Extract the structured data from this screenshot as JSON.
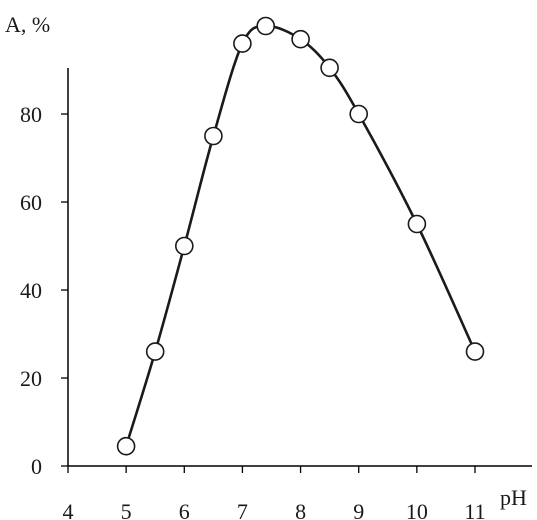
{
  "chart_data": {
    "type": "scatter",
    "xlabel": "pH",
    "ylabel": "A, %",
    "xlim": [
      4,
      11.5
    ],
    "ylim": [
      0,
      100
    ],
    "xticks": [
      4,
      5,
      6,
      7,
      8,
      9,
      10,
      11
    ],
    "yticks": [
      0,
      20,
      40,
      60,
      80
    ],
    "grid": false,
    "series": [
      {
        "marker": "open-circle",
        "line": "smooth",
        "x": [
          5,
          5.5,
          6,
          6.5,
          7,
          7.4,
          8,
          8.5,
          9,
          10,
          11
        ],
        "y": [
          4.5,
          26,
          50,
          75,
          96,
          100,
          97,
          90.5,
          80,
          55,
          26
        ]
      }
    ]
  }
}
